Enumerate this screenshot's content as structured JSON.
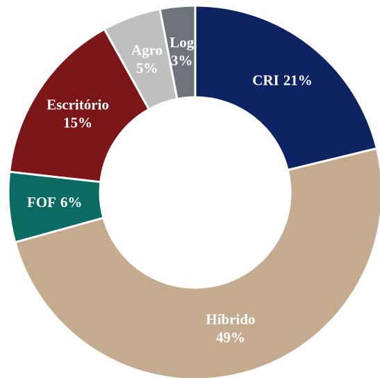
{
  "chart_data": {
    "type": "donut",
    "categories": [
      "CRI",
      "Híbrido",
      "FOF",
      "Escritório",
      "Agro",
      "Log"
    ],
    "values": [
      21,
      49,
      6,
      15,
      5,
      3
    ],
    "value_labels": [
      "21%",
      "49%",
      "6%",
      "15%",
      "5%",
      "3%"
    ],
    "colors": [
      "#0e2361",
      "#c4ab8f",
      "#0b6b63",
      "#7c1618",
      "#bfbfbf",
      "#6e7479"
    ]
  }
}
